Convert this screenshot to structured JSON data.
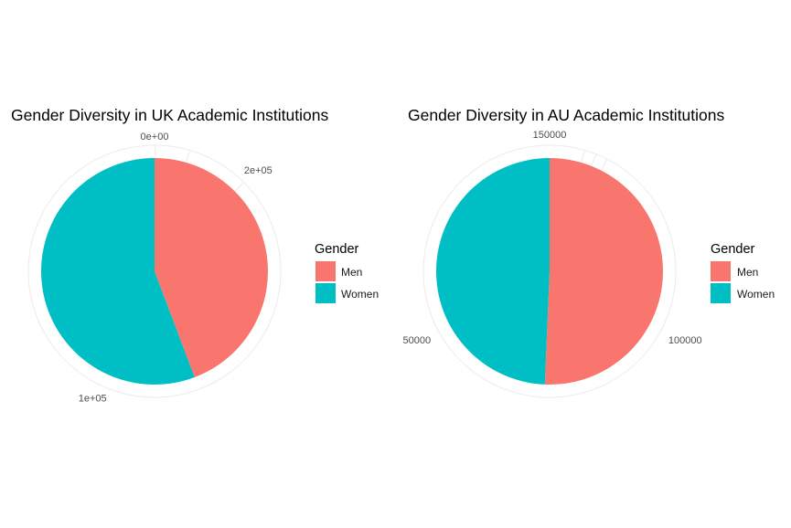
{
  "chart_data": [
    {
      "type": "pie",
      "title": "Gender Diversity in UK Academic Institutions",
      "categories": [
        "Men",
        "Women"
      ],
      "values": [
        100000,
        126000
      ],
      "colors": [
        "#F8766D",
        "#00BFC4"
      ],
      "tick_labels": [
        "0e+00",
        "1e+05",
        "2e+05"
      ],
      "tick_values": [
        0,
        100000,
        200000
      ],
      "legend": {
        "title": "Gender",
        "entries": [
          "Men",
          "Women"
        ],
        "placement": "right"
      },
      "grid": true
    },
    {
      "type": "pie",
      "title": "Gender Diversity in AU Academic Institutions",
      "categories": [
        "Men",
        "Women"
      ],
      "values": [
        76000,
        74000
      ],
      "colors": [
        "#F8766D",
        "#00BFC4"
      ],
      "tick_labels": [
        "50000",
        "100000",
        "150000"
      ],
      "tick_values": [
        50000,
        100000,
        150000
      ],
      "legend": {
        "title": "Gender",
        "entries": [
          "Men",
          "Women"
        ],
        "placement": "right"
      },
      "grid": true
    }
  ]
}
